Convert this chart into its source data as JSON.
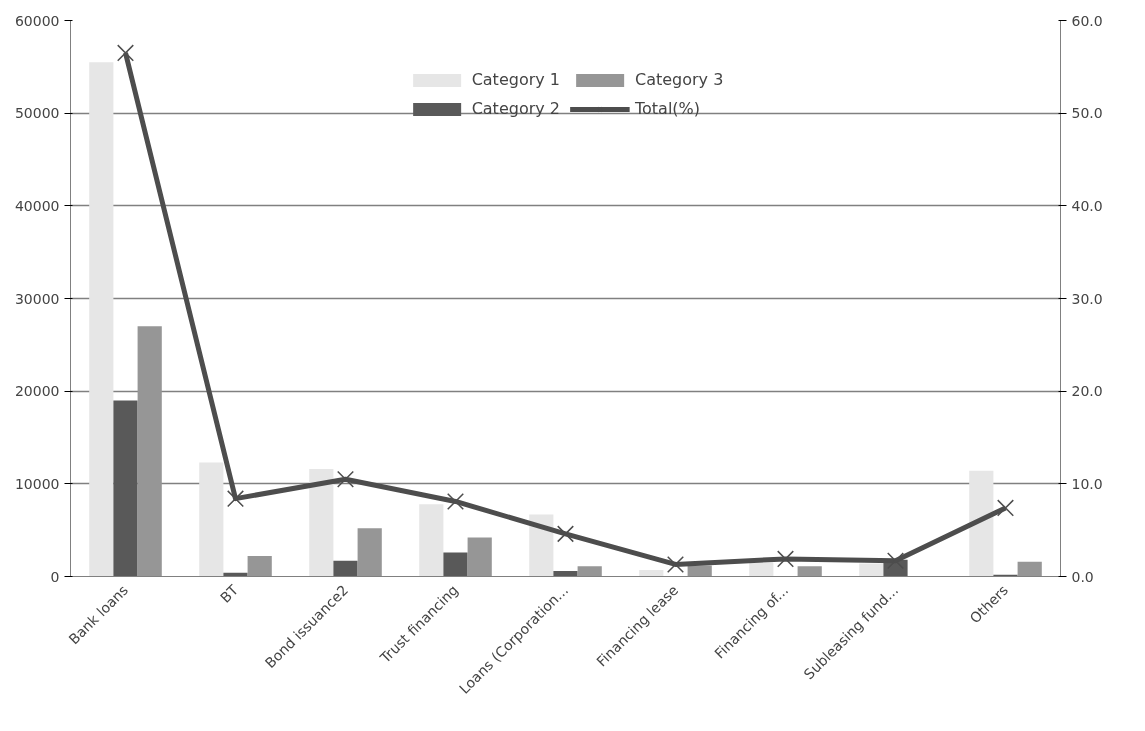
{
  "chart_data": {
    "type": "bar",
    "categories": [
      "Bank loans",
      "BT",
      "Bond issuance2",
      "Trust financing",
      "Loans (Corporation...",
      "Financing lease",
      "Financing of...",
      "Subleasing fund...",
      "Others"
    ],
    "series": [
      {
        "name": "Category 1",
        "color": "#e6e6e6",
        "values": [
          55500,
          12300,
          11600,
          7800,
          6700,
          700,
          1500,
          1400,
          11400
        ]
      },
      {
        "name": "Category 2",
        "color": "#595959",
        "values": [
          19000,
          400,
          1700,
          2600,
          600,
          null,
          null,
          1800,
          200
        ]
      },
      {
        "name": "Category 3",
        "color": "#969696",
        "values": [
          27000,
          2200,
          5200,
          4200,
          1100,
          1200,
          1100,
          null,
          1600
        ]
      },
      {
        "name": "Total(%)",
        "type": "line",
        "axis": "y2",
        "color": "#4d4d4d",
        "marker": "cross",
        "values": [
          56.5,
          8.4,
          10.5,
          8.1,
          4.6,
          1.3,
          1.9,
          1.7,
          7.4
        ]
      }
    ],
    "ylim": [
      0,
      60000
    ],
    "yticks": [
      0,
      10000,
      20000,
      30000,
      40000,
      50000,
      60000
    ],
    "y2lim": [
      0,
      60
    ],
    "y2ticks": [
      {
        "value": 0,
        "label": "0.0"
      },
      {
        "value": 10,
        "label": "10.0"
      },
      {
        "value": 20,
        "label": "20.0"
      },
      {
        "value": 30,
        "label": "30.0"
      },
      {
        "value": 40,
        "label": "40.0"
      },
      {
        "value": 50,
        "label": "50.0"
      },
      {
        "value": 60,
        "label": "60.0"
      }
    ],
    "grid": "y",
    "legend": "top"
  }
}
